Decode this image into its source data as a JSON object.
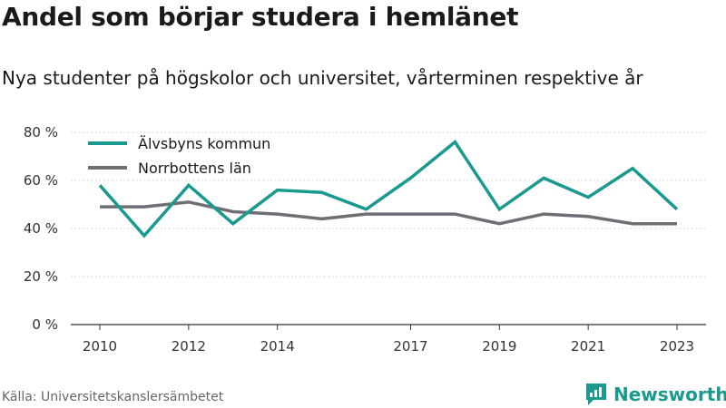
{
  "chart_data": {
    "type": "line",
    "title": "Andel som börjar studera i hemlänet",
    "subtitle": "Nya studenter på högskolor och universitet, vårterminen respektive år",
    "x": [
      2010,
      2011,
      2012,
      2013,
      2014,
      2015,
      2016,
      2017,
      2018,
      2019,
      2020,
      2021,
      2022,
      2023
    ],
    "x_tick_values": [
      2010,
      2012,
      2014,
      2017,
      2019,
      2021,
      2023
    ],
    "x_tick_labels": [
      "2010",
      "2012",
      "2014",
      "2017",
      "2019",
      "2021",
      "2023"
    ],
    "y_ticks": [
      0,
      20,
      40,
      60,
      80
    ],
    "y_tick_labels": [
      "0 %",
      "20 %",
      "40 %",
      "60 %",
      "80 %"
    ],
    "ylim": [
      0,
      80
    ],
    "grid": true,
    "legend_position": "top-left",
    "series": [
      {
        "name": "Älvsbyns kommun",
        "color": "#1a9a8f",
        "values": [
          58,
          37,
          58,
          42,
          56,
          55,
          48,
          61,
          76,
          48,
          61,
          53,
          65,
          48
        ]
      },
      {
        "name": "Norrbottens län",
        "color": "#6e6e75",
        "values": [
          49,
          49,
          51,
          47,
          46,
          44,
          46,
          46,
          46,
          42,
          46,
          45,
          42,
          42
        ]
      }
    ]
  },
  "footer": {
    "source": "Källa: Universitetskanslersämbetet",
    "brand": "Newsworthy",
    "brand_icon": "newsworthy-logo-icon"
  }
}
